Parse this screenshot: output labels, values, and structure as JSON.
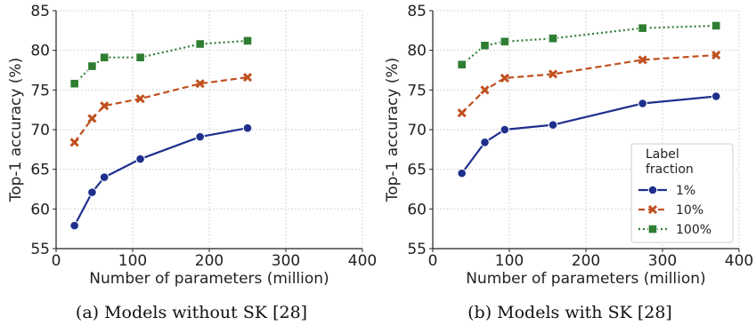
{
  "chart_data": [
    {
      "type": "line",
      "caption": "(a) Models without SK [28]",
      "xlabel": "Number of parameters (million)",
      "ylabel": "Top-1 accuracy (%)",
      "xlim": [
        0,
        400
      ],
      "ylim": [
        55,
        85
      ],
      "xticks": [
        0,
        100,
        200,
        300,
        400
      ],
      "yticks": [
        55,
        60,
        65,
        70,
        75,
        80,
        85
      ],
      "grid": true,
      "series": [
        {
          "name": "1%",
          "color": "#1f2f8c",
          "marker": "circle",
          "dash": "solid",
          "x": [
            24,
            47,
            63,
            110,
            188,
            250
          ],
          "y": [
            57.9,
            62.1,
            64.0,
            66.3,
            69.1,
            70.2
          ]
        },
        {
          "name": "10%",
          "color": "#c0501e",
          "marker": "x",
          "dash": "dashed",
          "x": [
            24,
            47,
            63,
            110,
            188,
            250
          ],
          "y": [
            68.4,
            71.4,
            73.0,
            73.9,
            75.8,
            76.6
          ]
        },
        {
          "name": "100%",
          "color": "#2e7d32",
          "marker": "square",
          "dash": "dotted",
          "x": [
            24,
            47,
            63,
            110,
            188,
            250
          ],
          "y": [
            75.8,
            78.0,
            79.1,
            79.1,
            80.8,
            81.2
          ]
        }
      ]
    },
    {
      "type": "line",
      "caption": "(b) Models with SK [28]",
      "xlabel": "Number of parameters (million)",
      "ylabel": "Top-1 accuracy (%)",
      "xlim": [
        0,
        400
      ],
      "ylim": [
        55,
        85
      ],
      "xticks": [
        0,
        100,
        200,
        300,
        400
      ],
      "yticks": [
        55,
        60,
        65,
        70,
        75,
        80,
        85
      ],
      "grid": true,
      "legend": {
        "title": "Label\nfraction",
        "placement": "lower-right"
      },
      "series": [
        {
          "name": "1%",
          "color": "#1f2f8c",
          "marker": "circle",
          "dash": "solid",
          "x": [
            38,
            68,
            94,
            157,
            274,
            370
          ],
          "y": [
            64.5,
            68.4,
            70.0,
            70.6,
            73.3,
            74.2
          ]
        },
        {
          "name": "10%",
          "color": "#c0501e",
          "marker": "x",
          "dash": "dashed",
          "x": [
            38,
            68,
            94,
            157,
            274,
            370
          ],
          "y": [
            72.1,
            75.0,
            76.5,
            77.0,
            78.8,
            79.4
          ]
        },
        {
          "name": "100%",
          "color": "#2e7d32",
          "marker": "square",
          "dash": "dotted",
          "x": [
            38,
            68,
            94,
            157,
            274,
            370
          ],
          "y": [
            78.2,
            80.6,
            81.1,
            81.5,
            82.8,
            83.1
          ]
        }
      ]
    }
  ]
}
